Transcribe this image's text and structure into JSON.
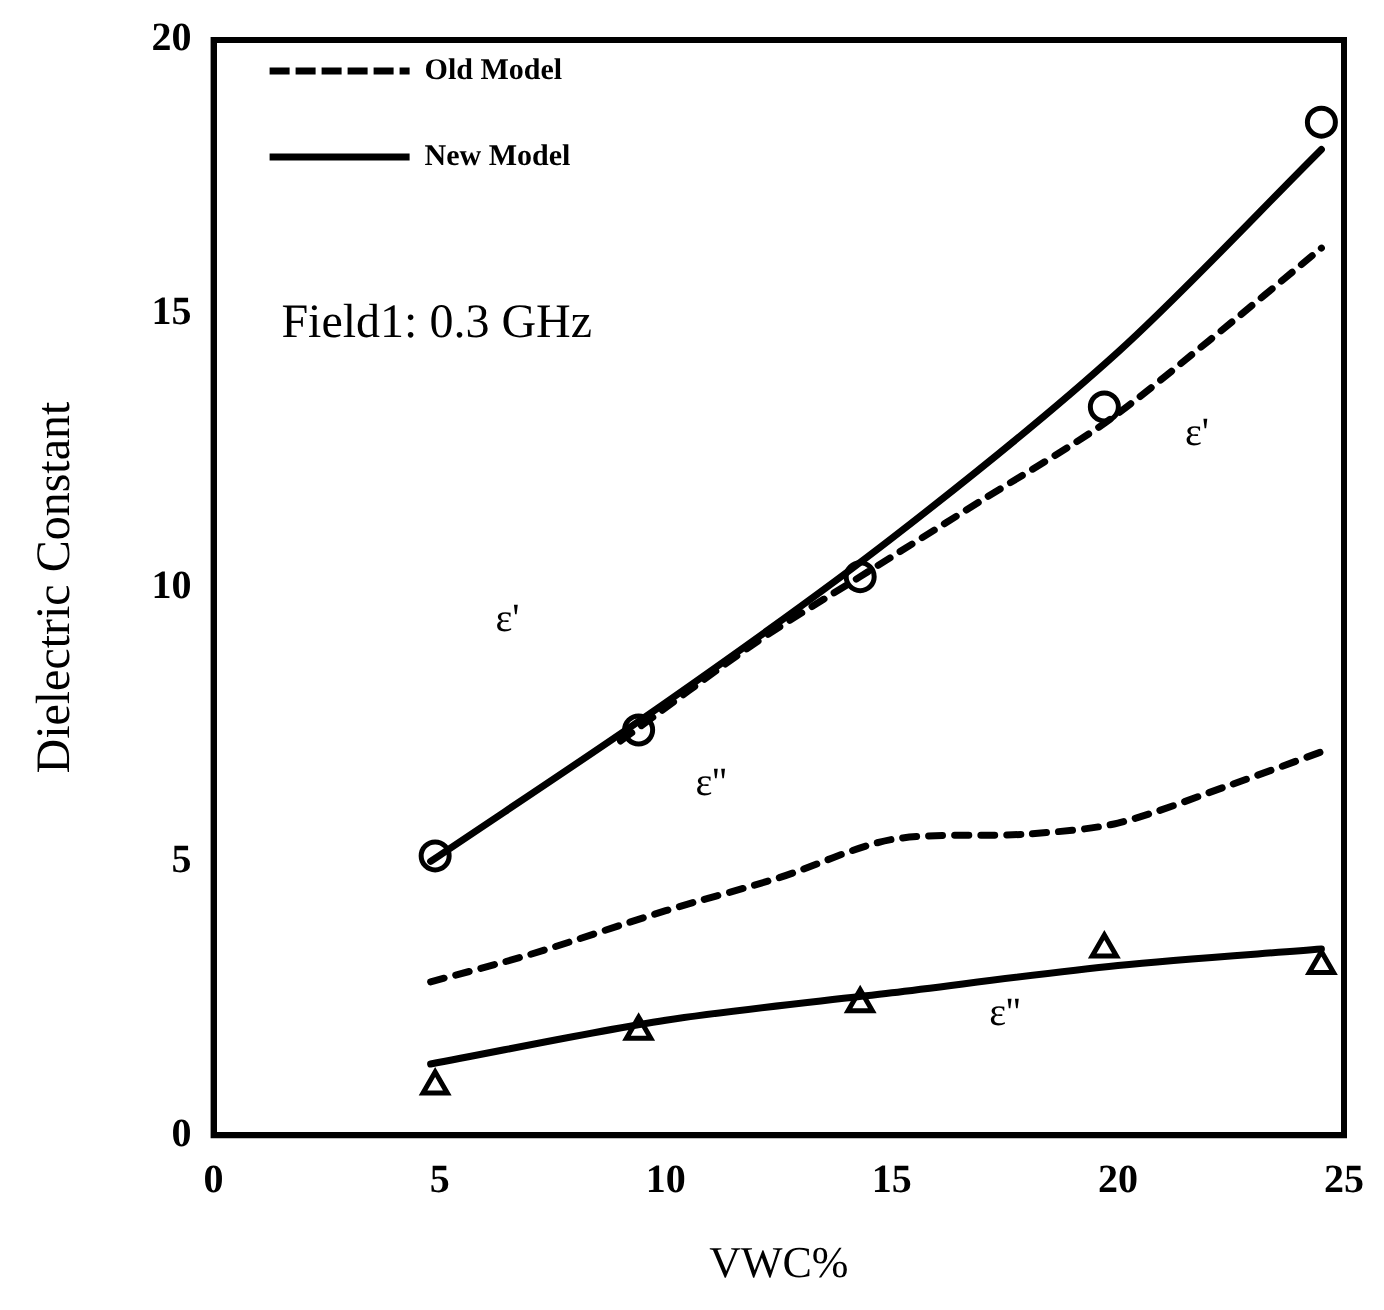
{
  "chart_data": {
    "type": "line",
    "xlabel": "VWC%",
    "ylabel": "Dielectric Constant",
    "xlim": [
      0,
      25
    ],
    "xticks": [
      0,
      5,
      10,
      15,
      20,
      25
    ],
    "ylim": [
      0,
      20
    ],
    "yticks": [
      0,
      5,
      10,
      15,
      20
    ],
    "grid": false,
    "legend": "top left",
    "series": [
      {
        "name": "Old Model",
        "color": "#000000",
        "line_style": "dashed",
        "marker": "none",
        "x": [
          9,
          12,
          14.3,
          17,
          19.7,
          22,
          24.5,
          null,
          4.8,
          7,
          10,
          12.5,
          15,
          18,
          20,
          22.5,
          24.5
        ],
        "values": [
          7.2,
          9.0,
          10.2,
          11.6,
          13.0,
          14.5,
          16.2,
          null,
          2.8,
          3.3,
          4.1,
          4.7,
          5.4,
          5.5,
          5.7,
          6.4,
          7.0
        ]
      },
      {
        "name": "New Model",
        "color": "#000000",
        "line_style": "solid",
        "marker": "none",
        "x": [
          4.8,
          10,
          15,
          20,
          24.5,
          null,
          4.8,
          10,
          15,
          20,
          24.5
        ],
        "values": [
          5.0,
          7.9,
          10.9,
          14.3,
          18.0,
          null,
          1.3,
          2.1,
          2.6,
          3.1,
          3.4
        ]
      },
      {
        "type": "scatter",
        "color": "#000000",
        "marker": "circle",
        "x": [
          4.9,
          9.4,
          14.3,
          19.7,
          24.5
        ],
        "values": [
          5.1,
          7.4,
          10.2,
          13.3,
          18.5
        ]
      },
      {
        "type": "scatter",
        "color": "#000000",
        "marker": "triangle",
        "x": [
          4.9,
          9.4,
          14.3,
          19.7,
          24.5
        ],
        "values": [
          0.9,
          1.9,
          2.4,
          3.4,
          3.1
        ]
      }
    ],
    "annotations": [
      "Field1: 0.3 GHz",
      "ε'",
      "ε'",
      "ε''",
      "ε''"
    ]
  }
}
